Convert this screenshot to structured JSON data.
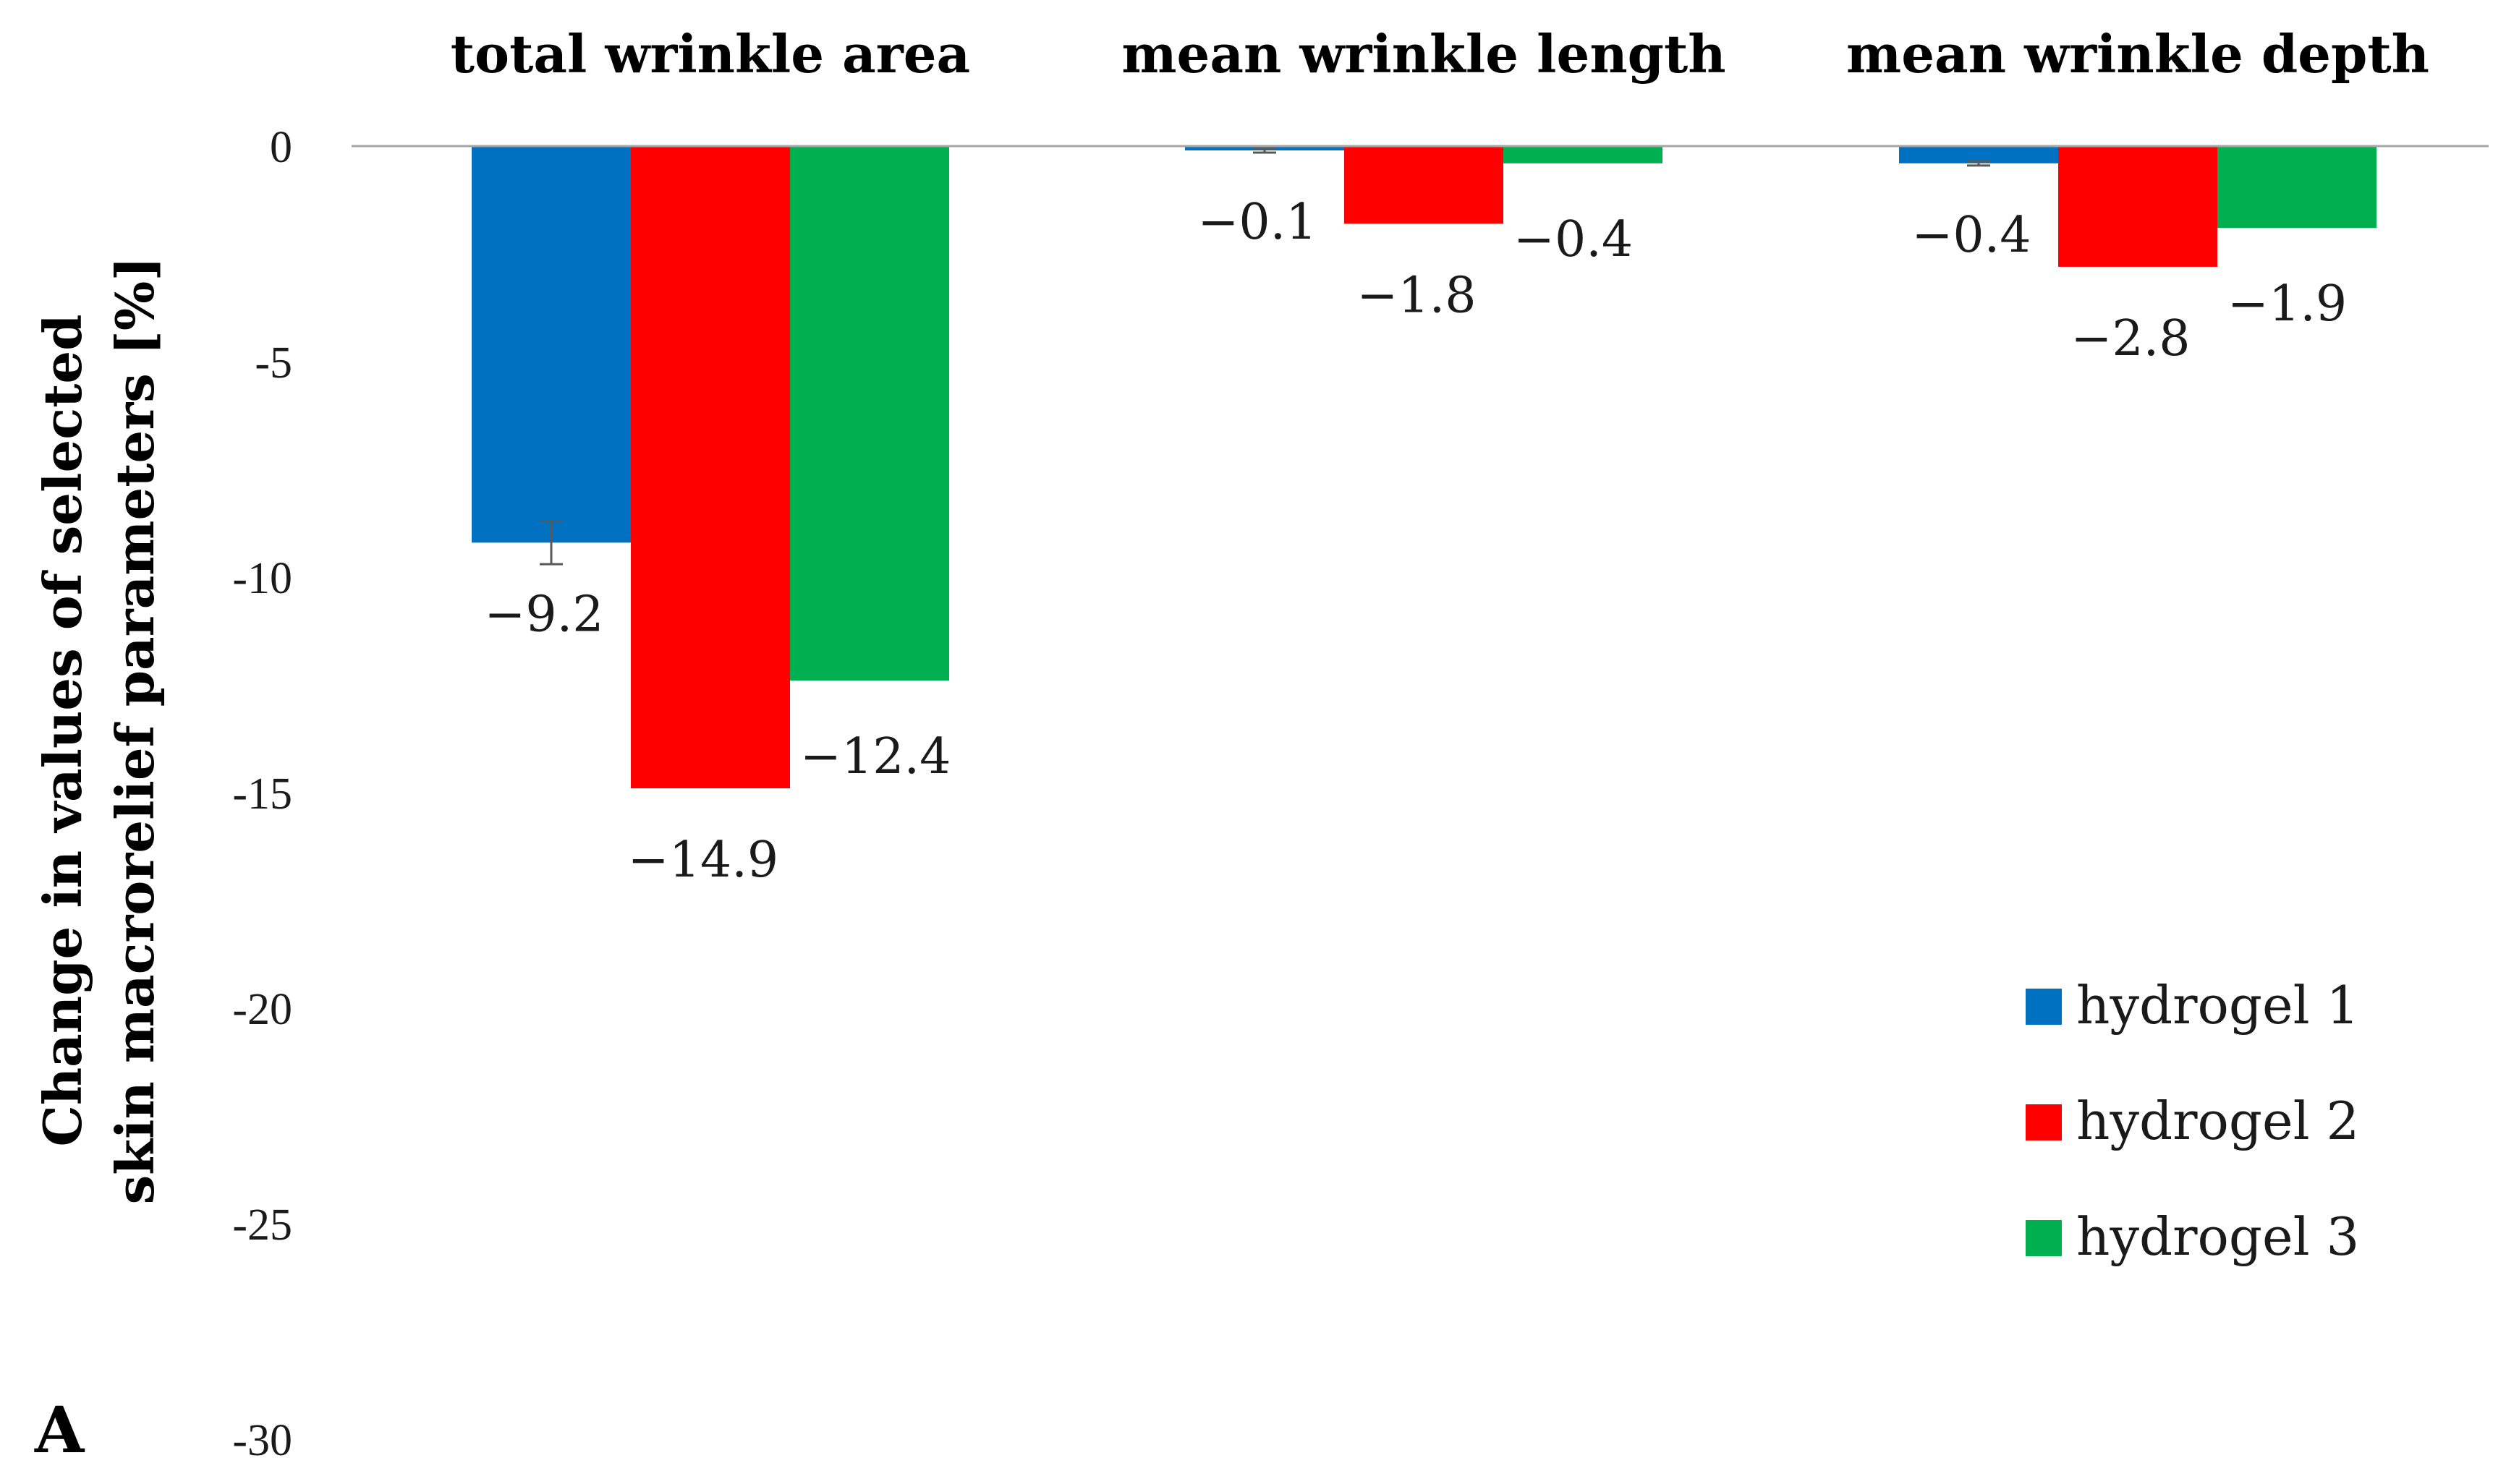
{
  "panel_label": "A",
  "colors": {
    "hydrogel_1": "#0070c0",
    "hydrogel_2": "#ff0000",
    "hydrogel_3": "#00b050",
    "axis": "#a6a6a6",
    "error_bar": "#595959"
  },
  "chart_data": {
    "type": "bar",
    "title": "",
    "xlabel": "",
    "ylabel": "Change in values of selected skin macrorelief parameters [%]",
    "ylabel_lines": [
      "Change in values of selected",
      "skin macrorelief parameters [%]"
    ],
    "ylim": [
      -30,
      0
    ],
    "yticks": [
      0,
      -5,
      -10,
      -15,
      -20,
      -25,
      -30
    ],
    "ytick_labels": [
      "0",
      "-5",
      "-10",
      "-15",
      "-20",
      "-25",
      "-30"
    ],
    "grid": false,
    "categories": [
      "total wrinkle area",
      "mean wrinkle length",
      "mean wrinkle depth"
    ],
    "legend_position": "bottom-right",
    "series": [
      {
        "name": "hydrogel 1",
        "color_key": "hydrogel_1",
        "values": [
          -9.2,
          -0.1,
          -0.4
        ],
        "labels": [
          "−9.2",
          "−0.1",
          "−0.4"
        ],
        "error": [
          0.5,
          0.05,
          0.05
        ]
      },
      {
        "name": "hydrogel 2",
        "color_key": "hydrogel_2",
        "values": [
          -14.9,
          -1.8,
          -2.8
        ],
        "labels": [
          "−14.9",
          "−1.8",
          "−2.8"
        ]
      },
      {
        "name": "hydrogel 3",
        "color_key": "hydrogel_3",
        "values": [
          -12.4,
          -0.4,
          -1.9
        ],
        "labels": [
          "−12.4",
          "−0.4",
          "−1.9"
        ]
      }
    ]
  }
}
